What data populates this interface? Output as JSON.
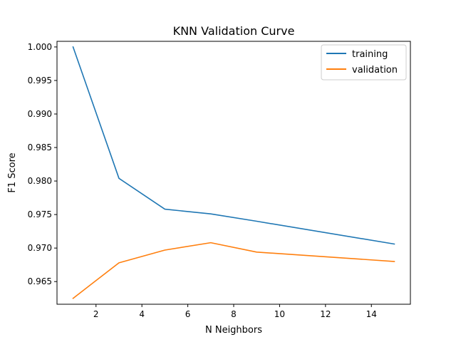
{
  "chart_data": {
    "type": "line",
    "title": "KNN Validation Curve",
    "xlabel": "N Neighbors",
    "ylabel": "F1 Score",
    "xlim": [
      0.3,
      15.7
    ],
    "ylim": [
      0.96162,
      1.00084
    ],
    "xticks": [
      2,
      4,
      6,
      8,
      10,
      12,
      14
    ],
    "yticks": [
      0.965,
      0.97,
      0.975,
      0.98,
      0.985,
      0.99,
      0.995,
      1.0
    ],
    "ytick_labels": [
      "0.965",
      "0.970",
      "0.975",
      "0.980",
      "0.985",
      "0.990",
      "0.995",
      "1.000"
    ],
    "grid": false,
    "legend_position": "top-right",
    "x": [
      1,
      3,
      5,
      7,
      9,
      15
    ],
    "series": [
      {
        "name": "training",
        "color": "#1f77b4",
        "values": [
          1.0,
          0.9804,
          0.9758,
          0.9751,
          0.974,
          0.9706
        ]
      },
      {
        "name": "validation",
        "color": "#ff7f0e",
        "values": [
          0.9625,
          0.9678,
          0.9697,
          0.9708,
          0.9694,
          0.968
        ]
      }
    ]
  }
}
